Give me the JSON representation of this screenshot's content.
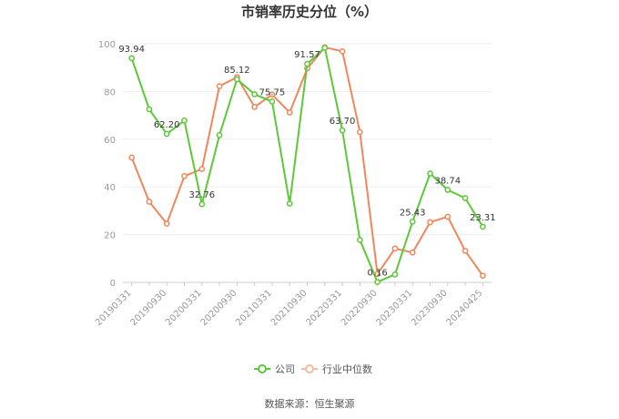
{
  "chart_data": {
    "type": "line",
    "title": "市销率历史分位（%）",
    "ylim": [
      0,
      100
    ],
    "yticks": [
      0,
      20,
      40,
      60,
      80,
      100
    ],
    "x": [
      "20190331",
      "20190630",
      "20190930",
      "20191231",
      "20200331",
      "20200630",
      "20200930",
      "20201231",
      "20210331",
      "20210630",
      "20210930",
      "20211231",
      "20220331",
      "20220630",
      "20220930",
      "20221231",
      "20230331",
      "20230630",
      "20230930",
      "20231231",
      "20240425"
    ],
    "x_tick_labels": [
      "20190331",
      "20190930",
      "20200331",
      "20200930",
      "20210331",
      "20210930",
      "20220331",
      "20220930",
      "20230331",
      "20230930",
      "20240425"
    ],
    "grid": "horizontal",
    "legend_position": "bottom",
    "series": [
      {
        "name": "公司",
        "color": "#5cc83a",
        "values": [
          93.94,
          72.5,
          62.2,
          67.8,
          32.76,
          61.7,
          85.12,
          78.8,
          75.75,
          33.0,
          91.57,
          98.3,
          63.7,
          17.8,
          0.16,
          3.3,
          25.43,
          45.6,
          38.74,
          35.3,
          23.31
        ],
        "labels": {
          "0": "93.94",
          "2": "62.20",
          "4": "32.76",
          "6": "85.12",
          "8": "75.75",
          "10": "91.57",
          "12": "63.70",
          "14": "0.16",
          "16": "25.43",
          "18": "38.74",
          "20": "23.31"
        }
      },
      {
        "name": "行业中位数",
        "color": "#f0875a",
        "values": [
          52.3,
          33.8,
          24.6,
          44.5,
          47.5,
          82.2,
          86.0,
          73.5,
          78.7,
          71.2,
          89.6,
          98.5,
          96.8,
          63.0,
          3.5,
          14.2,
          12.5,
          25.2,
          27.5,
          13.2,
          2.8
        ]
      }
    ]
  },
  "legend": {
    "company": "公司",
    "industry": "行业中位数"
  },
  "source": "数据来源：恒生聚源"
}
